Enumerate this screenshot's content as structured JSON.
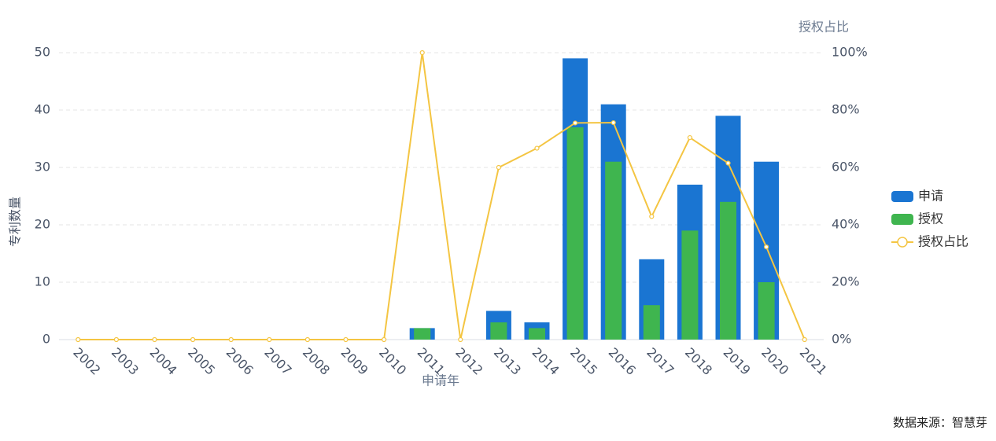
{
  "chart_data": {
    "type": "bar-line",
    "x_label": "申请年",
    "y_label": "专利数量",
    "y2_label": "授权占比",
    "source": "数据来源：智慧芽",
    "categories": [
      "2002",
      "2003",
      "2004",
      "2005",
      "2006",
      "2007",
      "2008",
      "2009",
      "2010",
      "2011",
      "2012",
      "2013",
      "2014",
      "2015",
      "2016",
      "2017",
      "2018",
      "2019",
      "2020",
      "2021"
    ],
    "series": [
      {
        "name": "申请",
        "color": "#1a75d2",
        "values": [
          0,
          0,
          0,
          0,
          0,
          0,
          0,
          0,
          0,
          2,
          0,
          5,
          3,
          49,
          41,
          14,
          27,
          39,
          31,
          0
        ]
      },
      {
        "name": "授权",
        "color": "#3fb54f",
        "values": [
          0,
          0,
          0,
          0,
          0,
          0,
          0,
          0,
          0,
          2,
          0,
          3,
          2,
          37,
          31,
          6,
          19,
          24,
          10,
          0
        ]
      },
      {
        "name": "授权占比",
        "color": "#f4c542",
        "axis": "y2",
        "values": [
          0,
          0,
          0,
          0,
          0,
          0,
          0,
          0,
          0,
          100,
          0,
          60,
          66.7,
          75.5,
          75.6,
          42.9,
          70.4,
          61.5,
          32.3,
          0
        ]
      }
    ],
    "ylim": [
      0,
      50
    ],
    "yticks": [
      0,
      10,
      20,
      30,
      40,
      50
    ],
    "y2lim": [
      0,
      100
    ],
    "y2ticks": [
      {
        "value": 0,
        "label": "0%"
      },
      {
        "value": 20,
        "label": "20%"
      },
      {
        "value": 40,
        "label": "40%"
      },
      {
        "value": 60,
        "label": "60%"
      },
      {
        "value": 80,
        "label": "80%"
      },
      {
        "value": 100,
        "label": "100%"
      }
    ],
    "grid": true,
    "legend": "right"
  }
}
